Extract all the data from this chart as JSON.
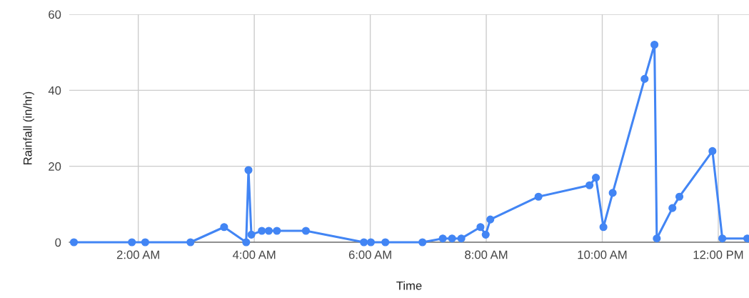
{
  "chart_data": {
    "type": "line",
    "xlabel": "Time",
    "ylabel": "Rainfall (in/hr)",
    "x": [
      0.89,
      1.89,
      2.12,
      2.9,
      3.48,
      3.86,
      3.9,
      3.95,
      4.13,
      4.25,
      4.39,
      4.89,
      5.89,
      6.01,
      6.26,
      6.9,
      7.25,
      7.41,
      7.57,
      7.9,
      7.99,
      8.07,
      8.9,
      9.78,
      9.89,
      10.02,
      10.18,
      10.73,
      10.9,
      10.94,
      11.21,
      11.33,
      11.9,
      12.07,
      12.5
    ],
    "series": [
      {
        "color": "#4285f4",
        "values": [
          0,
          0,
          0,
          0,
          4,
          0,
          19,
          2,
          3,
          3,
          3,
          3,
          0,
          0,
          0,
          0,
          1,
          1,
          1,
          4,
          2,
          6,
          12,
          15,
          17,
          4,
          13,
          43,
          52,
          1,
          9,
          12,
          24,
          1,
          1
        ]
      }
    ],
    "xlim": [
      0.81,
      12.53
    ],
    "xticks": [
      {
        "value": 2,
        "label": "2:00 AM"
      },
      {
        "value": 4,
        "label": "4:00 AM"
      },
      {
        "value": 6,
        "label": "6:00 AM"
      },
      {
        "value": 8,
        "label": "8:00 AM"
      },
      {
        "value": 10,
        "label": "10:00 AM"
      },
      {
        "value": 12,
        "label": "12:00 PM"
      }
    ],
    "ylim": [
      0,
      60
    ],
    "yticks": [
      0,
      20,
      40,
      60
    ],
    "grid": true,
    "marker": "circle",
    "line_style": "solid"
  }
}
